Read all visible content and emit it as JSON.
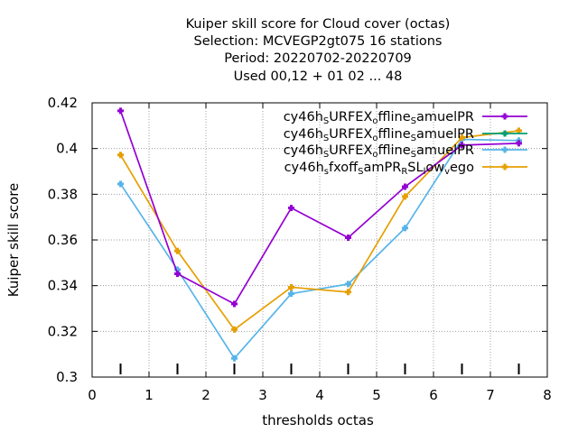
{
  "chart_data": {
    "type": "line",
    "title_lines": [
      "Kuiper skill score  for Cloud cover (octas)",
      "Selection: MCVEGP2gt075      16 stations",
      "Period: 20220702-20220709",
      "Used  00,12  + 01 02 ... 48"
    ],
    "xlabel": "thresholds octas",
    "ylabel": "Kuiper skill score",
    "xlim": [
      0,
      8
    ],
    "ylim": [
      0.3,
      0.42
    ],
    "xticks": [
      0,
      1,
      2,
      3,
      4,
      5,
      6,
      7,
      8
    ],
    "xtick_labels": [
      "0",
      "1",
      "2",
      "3",
      "4",
      "5",
      "6",
      "7",
      "8"
    ],
    "yticks": [
      0.3,
      0.32,
      0.34,
      0.36,
      0.38,
      0.4,
      0.42
    ],
    "ytick_labels": [
      "0.3",
      "0.32",
      "0.34",
      "0.36",
      "0.38",
      "0.4",
      "0.42"
    ],
    "grid": true,
    "legend_position": "top-right",
    "x": [
      0.5,
      1.5,
      2.5,
      3.5,
      4.5,
      5.5,
      6.5,
      7.5
    ],
    "count_ticks_x": [
      0.5,
      1.5,
      2.5,
      3.5,
      4.5,
      5.5,
      6.5,
      7.5
    ],
    "series": [
      {
        "legend_parts": [
          [
            "cy46h",
            false
          ],
          [
            "S",
            true
          ],
          [
            "URFEX",
            false
          ],
          [
            "o",
            true
          ],
          [
            "ffline",
            false
          ],
          [
            "S",
            true
          ],
          [
            "amuelPR",
            false
          ]
        ],
        "color": "#9400d3",
        "values": [
          0.4165,
          0.3452,
          0.332,
          0.374,
          0.361,
          0.3833,
          0.4015,
          0.4023
        ]
      },
      {
        "legend_parts": [
          [
            "cy46h",
            false
          ],
          [
            "S",
            true
          ],
          [
            "URFEX",
            false
          ],
          [
            "o",
            true
          ],
          [
            "ffline",
            false
          ],
          [
            "S",
            true
          ],
          [
            "amuelPR",
            false
          ]
        ],
        "color": "#009e73",
        "values": [
          null,
          null,
          null,
          null,
          null,
          null,
          null,
          null
        ]
      },
      {
        "legend_parts": [
          [
            "cy46h",
            false
          ],
          [
            "S",
            true
          ],
          [
            "URFEX",
            false
          ],
          [
            "o",
            true
          ],
          [
            "ffline",
            false
          ],
          [
            "S",
            true
          ],
          [
            "amuelPR",
            false
          ]
        ],
        "color": "#56b4e9",
        "values": [
          0.3845,
          0.347,
          0.3082,
          0.3365,
          0.3407,
          0.3652,
          0.404,
          0.4035
        ]
      },
      {
        "legend_parts": [
          [
            "cy46h",
            false
          ],
          [
            "s",
            true
          ],
          [
            "fxoff",
            false
          ],
          [
            "S",
            true
          ],
          [
            "amPR",
            false
          ],
          [
            "R",
            true
          ],
          [
            "SL",
            false
          ],
          [
            "l",
            true
          ],
          [
            "ow",
            false
          ],
          [
            "v",
            true
          ],
          [
            "ego",
            false
          ]
        ],
        "color": "#e69f00",
        "values": [
          0.3972,
          0.3552,
          0.3208,
          0.3393,
          0.3372,
          0.379,
          0.4048,
          0.4078
        ]
      }
    ]
  }
}
